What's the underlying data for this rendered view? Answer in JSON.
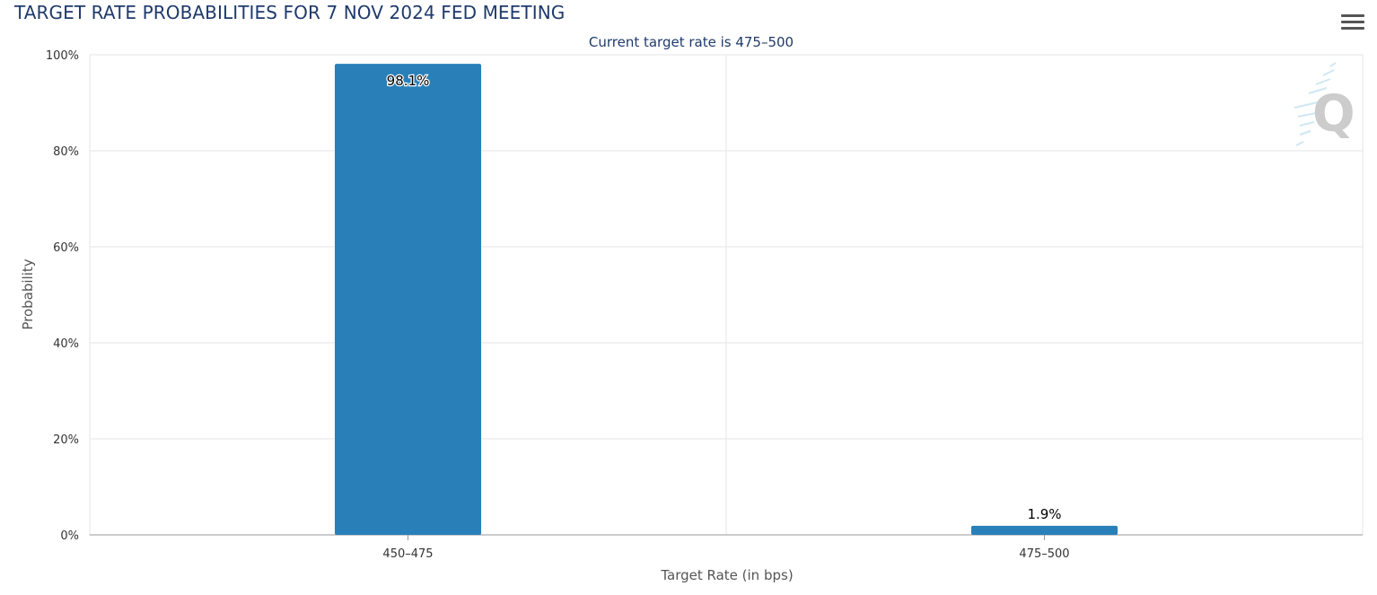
{
  "chart_data": {
    "type": "bar",
    "title": "TARGET RATE PROBABILITIES FOR 7 NOV 2024 FED MEETING",
    "subtitle": "Current target rate is 475–500",
    "xlabel": "Target Rate (in bps)",
    "ylabel": "Probability",
    "categories": [
      "450–475",
      "475–500"
    ],
    "values": [
      98.1,
      1.9
    ],
    "data_labels": [
      "98.1%",
      "1.9%"
    ],
    "ylim": [
      0,
      100
    ],
    "yticks": [
      0,
      20,
      40,
      60,
      80,
      100
    ],
    "ytick_labels": [
      "0%",
      "20%",
      "40%",
      "60%",
      "80%",
      "100%"
    ],
    "grid": true,
    "legend": "none",
    "bar_color": "#2980b9"
  },
  "toolbar": {
    "menu_icon": "hamburger-menu-icon"
  },
  "watermark": {
    "icon": "q-logo-watermark-icon",
    "letter": "Q"
  }
}
